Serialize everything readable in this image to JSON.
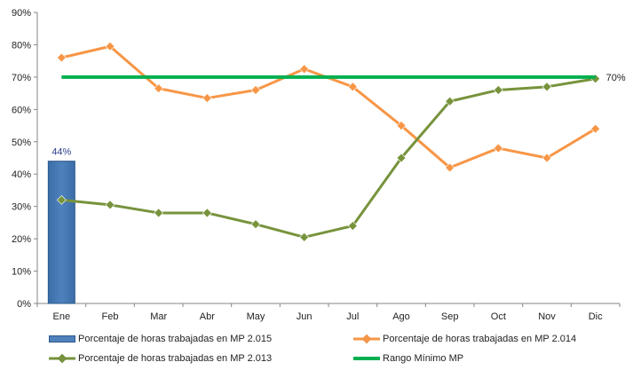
{
  "chart_data": {
    "type": "bar+line",
    "categories": [
      "Ene",
      "Feb",
      "Mar",
      "Abr",
      "May",
      "Jun",
      "Jul",
      "Ago",
      "Sep",
      "Oct",
      "Nov",
      "Dic"
    ],
    "ylim": [
      0,
      90
    ],
    "yticks": [
      "0%",
      "10%",
      "20%",
      "30%",
      "40%",
      "50%",
      "60%",
      "70%",
      "80%",
      "90%"
    ],
    "grid": false,
    "legend_position": "bottom",
    "series": [
      {
        "name": "Porcentaje de horas trabajadas en MP 2.015",
        "kind": "bar",
        "color": "#4f81bd",
        "values": [
          44,
          null,
          null,
          null,
          null,
          null,
          null,
          null,
          null,
          null,
          null,
          null
        ],
        "data_labels": [
          "44%"
        ]
      },
      {
        "name": "Porcentaje de horas trabajadas en MP 2.014",
        "kind": "line",
        "marker": "diamond",
        "color": "#f79646",
        "values": [
          76,
          79.5,
          66.5,
          63.5,
          66,
          72.5,
          67,
          55,
          42,
          48,
          45,
          54
        ]
      },
      {
        "name": "Porcentaje de horas trabajadas en MP 2.013",
        "kind": "line",
        "marker": "diamond",
        "color": "#77933c",
        "values": [
          32,
          30.5,
          28,
          28,
          24.5,
          20.5,
          24,
          45,
          62.5,
          66,
          67,
          69.5
        ]
      },
      {
        "name": "Rango Mínimo MP",
        "kind": "line",
        "marker": "none",
        "color": "#00b050",
        "values": [
          70,
          70,
          70,
          70,
          70,
          70,
          70,
          70,
          70,
          70,
          70,
          70
        ],
        "end_label": "70%"
      }
    ]
  }
}
